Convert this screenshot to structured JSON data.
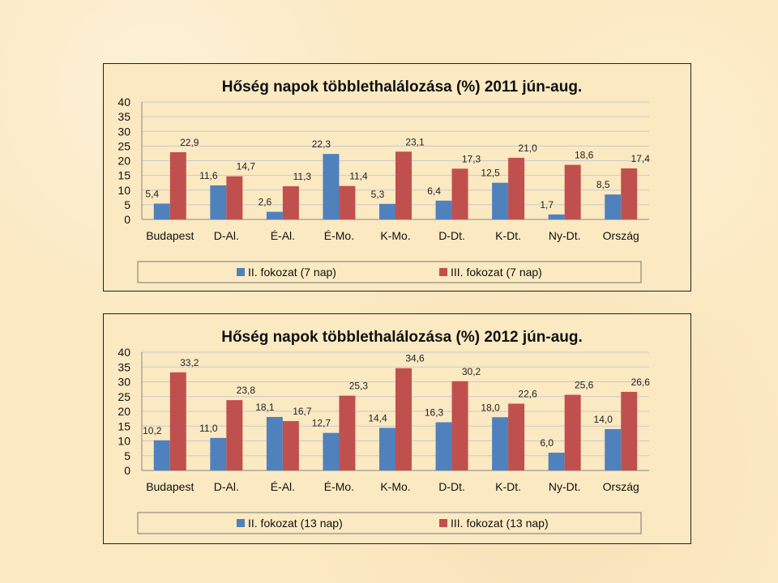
{
  "colors": {
    "series1": "#4f81bd",
    "series2": "#c0504d",
    "background": "#fbe9c2",
    "grid": "#c9c9c9"
  },
  "chart_data": [
    {
      "type": "bar",
      "title": "Hőség napok többlethalálozása (%) 2011 jún-aug.",
      "categories": [
        "Budapest",
        "D-Al.",
        "É-Al.",
        "É-Mo.",
        "K-Mo.",
        "D-Dt.",
        "K-Dt.",
        "Ny-Dt.",
        "Ország"
      ],
      "series": [
        {
          "name": "II. fokozat (7 nap)",
          "values": [
            5.4,
            11.6,
            2.6,
            22.3,
            5.3,
            6.4,
            12.5,
            1.7,
            8.5
          ],
          "labels": [
            "5,4",
            "11,6",
            "2,6",
            "22,3",
            "5,3",
            "6,4",
            "12,5",
            "1,7",
            "8,5"
          ]
        },
        {
          "name": "III. fokozat (7 nap)",
          "values": [
            22.9,
            14.7,
            11.3,
            11.4,
            23.1,
            17.3,
            21.0,
            18.6,
            17.4
          ],
          "labels": [
            "22,9",
            "14,7",
            "11,3",
            "11,4",
            "23,1",
            "17,3",
            "21,0",
            "18,6",
            "17,4"
          ]
        }
      ],
      "ylim": [
        0,
        40
      ],
      "yticks": [
        "0",
        "5",
        "10",
        "15",
        "20",
        "25",
        "30",
        "35",
        "40"
      ],
      "grid": true,
      "legend": "bottom"
    },
    {
      "type": "bar",
      "title": "Hőség napok többlethalálozása (%) 2012 jún-aug.",
      "categories": [
        "Budapest",
        "D-Al.",
        "É-Al.",
        "É-Mo.",
        "K-Mo.",
        "D-Dt.",
        "K-Dt.",
        "Ny-Dt.",
        "Ország"
      ],
      "series": [
        {
          "name": "II. fokozat (13 nap)",
          "values": [
            10.2,
            11.0,
            18.1,
            12.7,
            14.4,
            16.3,
            18.0,
            6.0,
            14.0
          ],
          "labels": [
            "10,2",
            "11,0",
            "18,1",
            "12,7",
            "14,4",
            "16,3",
            "18,0",
            "6,0",
            "14,0"
          ]
        },
        {
          "name": "III. fokozat (13 nap)",
          "values": [
            33.2,
            23.8,
            16.7,
            25.3,
            34.6,
            30.2,
            22.6,
            25.6,
            26.6
          ],
          "labels": [
            "33,2",
            "23,8",
            "16,7",
            "25,3",
            "34,6",
            "30,2",
            "22,6",
            "25,6",
            "26,6"
          ]
        }
      ],
      "ylim": [
        0,
        40
      ],
      "yticks": [
        "0",
        "5",
        "10",
        "15",
        "20",
        "25",
        "30",
        "35",
        "40"
      ],
      "grid": true,
      "legend": "bottom"
    }
  ]
}
